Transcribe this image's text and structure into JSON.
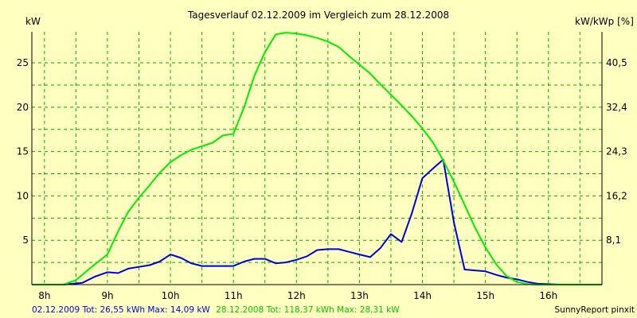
{
  "colors": {
    "background": "#ffffc0",
    "grid": "#00b000",
    "series_today": "#0000dd",
    "series_compare": "#00ee00",
    "axis": "#000000"
  },
  "chart_data": {
    "type": "line",
    "title": "Tagesverlauf 02.12.2009 im Vergleich zum 28.12.2008",
    "ylabel_left": "kW",
    "ylabel_right": "kW/kWp [%]",
    "xlim": [
      7.8,
      16.85
    ],
    "ylim": [
      0,
      28.5
    ],
    "x_ticks": [
      {
        "value": 8,
        "label": "8h"
      },
      {
        "value": 9,
        "label": "9h"
      },
      {
        "value": 10,
        "label": "10h"
      },
      {
        "value": 11,
        "label": "11h"
      },
      {
        "value": 12,
        "label": "12h"
      },
      {
        "value": 13,
        "label": "13h"
      },
      {
        "value": 14,
        "label": "14h"
      },
      {
        "value": 15,
        "label": "15h"
      },
      {
        "value": 16,
        "label": "16h"
      }
    ],
    "x_minor_grid": [
      8.5,
      9.5,
      10.5,
      11.5,
      12.5,
      13.5,
      14.5,
      15.5,
      16.5
    ],
    "y_ticks_left": [
      {
        "value": 5,
        "label": "5"
      },
      {
        "value": 10,
        "label": "10"
      },
      {
        "value": 15,
        "label": "15"
      },
      {
        "value": 20,
        "label": "20"
      },
      {
        "value": 25,
        "label": "25"
      }
    ],
    "y_ticks_right": [
      {
        "value": 5,
        "label": "8,1"
      },
      {
        "value": 10,
        "label": "16,2"
      },
      {
        "value": 15,
        "label": "24,3"
      },
      {
        "value": 20,
        "label": "32,4"
      },
      {
        "value": 25,
        "label": "40,5"
      }
    ],
    "y_minor_grid": [
      2.5,
      7.5,
      12.5,
      17.5,
      22.5
    ],
    "series": [
      {
        "name": "02.12.2009",
        "color_key": "series_today",
        "x": [
          7.8,
          8.3,
          8.6,
          8.8,
          9.0,
          9.17,
          9.33,
          9.5,
          9.67,
          9.83,
          10.0,
          10.17,
          10.33,
          10.5,
          10.67,
          10.83,
          11.0,
          11.17,
          11.33,
          11.5,
          11.67,
          11.83,
          12.0,
          12.17,
          12.33,
          12.5,
          12.67,
          12.83,
          13.0,
          13.17,
          13.33,
          13.5,
          13.67,
          13.83,
          14.0,
          14.17,
          14.33,
          14.5,
          14.67,
          14.83,
          15.0,
          15.17,
          15.33,
          15.5,
          15.67,
          15.83,
          16.0,
          16.17,
          16.33,
          16.5,
          16.85
        ],
        "y": [
          0,
          0,
          0.2,
          0.9,
          1.4,
          1.3,
          1.8,
          2.0,
          2.2,
          2.6,
          3.4,
          3.0,
          2.4,
          2.1,
          2.1,
          2.1,
          2.1,
          2.6,
          2.9,
          2.9,
          2.4,
          2.5,
          2.8,
          3.2,
          3.9,
          4.0,
          4.0,
          3.7,
          3.4,
          3.1,
          4.1,
          5.7,
          4.8,
          8.0,
          12.0,
          13.1,
          14.1,
          7.0,
          1.7,
          1.6,
          1.5,
          1.1,
          0.8,
          0.6,
          0.3,
          0.1,
          0.05,
          0,
          0,
          0,
          0
        ]
      },
      {
        "name": "28.12.2008",
        "color_key": "series_compare",
        "x": [
          7.8,
          8.3,
          8.5,
          8.75,
          9.0,
          9.17,
          9.33,
          9.5,
          9.67,
          9.83,
          10.0,
          10.17,
          10.33,
          10.5,
          10.67,
          10.83,
          11.0,
          11.17,
          11.33,
          11.5,
          11.67,
          11.83,
          12.0,
          12.17,
          12.33,
          12.5,
          12.67,
          12.83,
          13.0,
          13.17,
          13.33,
          13.5,
          13.67,
          13.83,
          14.0,
          14.17,
          14.33,
          14.5,
          14.67,
          14.83,
          15.0,
          15.17,
          15.33,
          15.5,
          15.67,
          15.83,
          16.0,
          16.17,
          16.33,
          16.5,
          16.85
        ],
        "y": [
          0,
          0,
          0.5,
          2.0,
          3.4,
          6.0,
          8.2,
          9.8,
          11.2,
          12.6,
          13.8,
          14.6,
          15.2,
          15.6,
          16.0,
          16.8,
          17.0,
          20.0,
          23.5,
          26.2,
          28.2,
          28.4,
          28.31,
          28.1,
          27.8,
          27.4,
          26.8,
          25.8,
          24.8,
          23.8,
          22.6,
          21.4,
          20.2,
          19.0,
          17.6,
          16.0,
          14.0,
          11.6,
          9.0,
          6.5,
          4.2,
          2.3,
          1.0,
          0.3,
          0.05,
          0,
          0,
          0,
          0,
          0,
          0
        ]
      }
    ]
  },
  "footer": {
    "today_summary": "02.12.2009 Tot: 26,55 kWh Max: 14,09 kW",
    "compare_summary": "28.12.2008 Tot: 118,37 kWh Max: 28,31 kW",
    "brand": "SunnyReport pinxit"
  }
}
